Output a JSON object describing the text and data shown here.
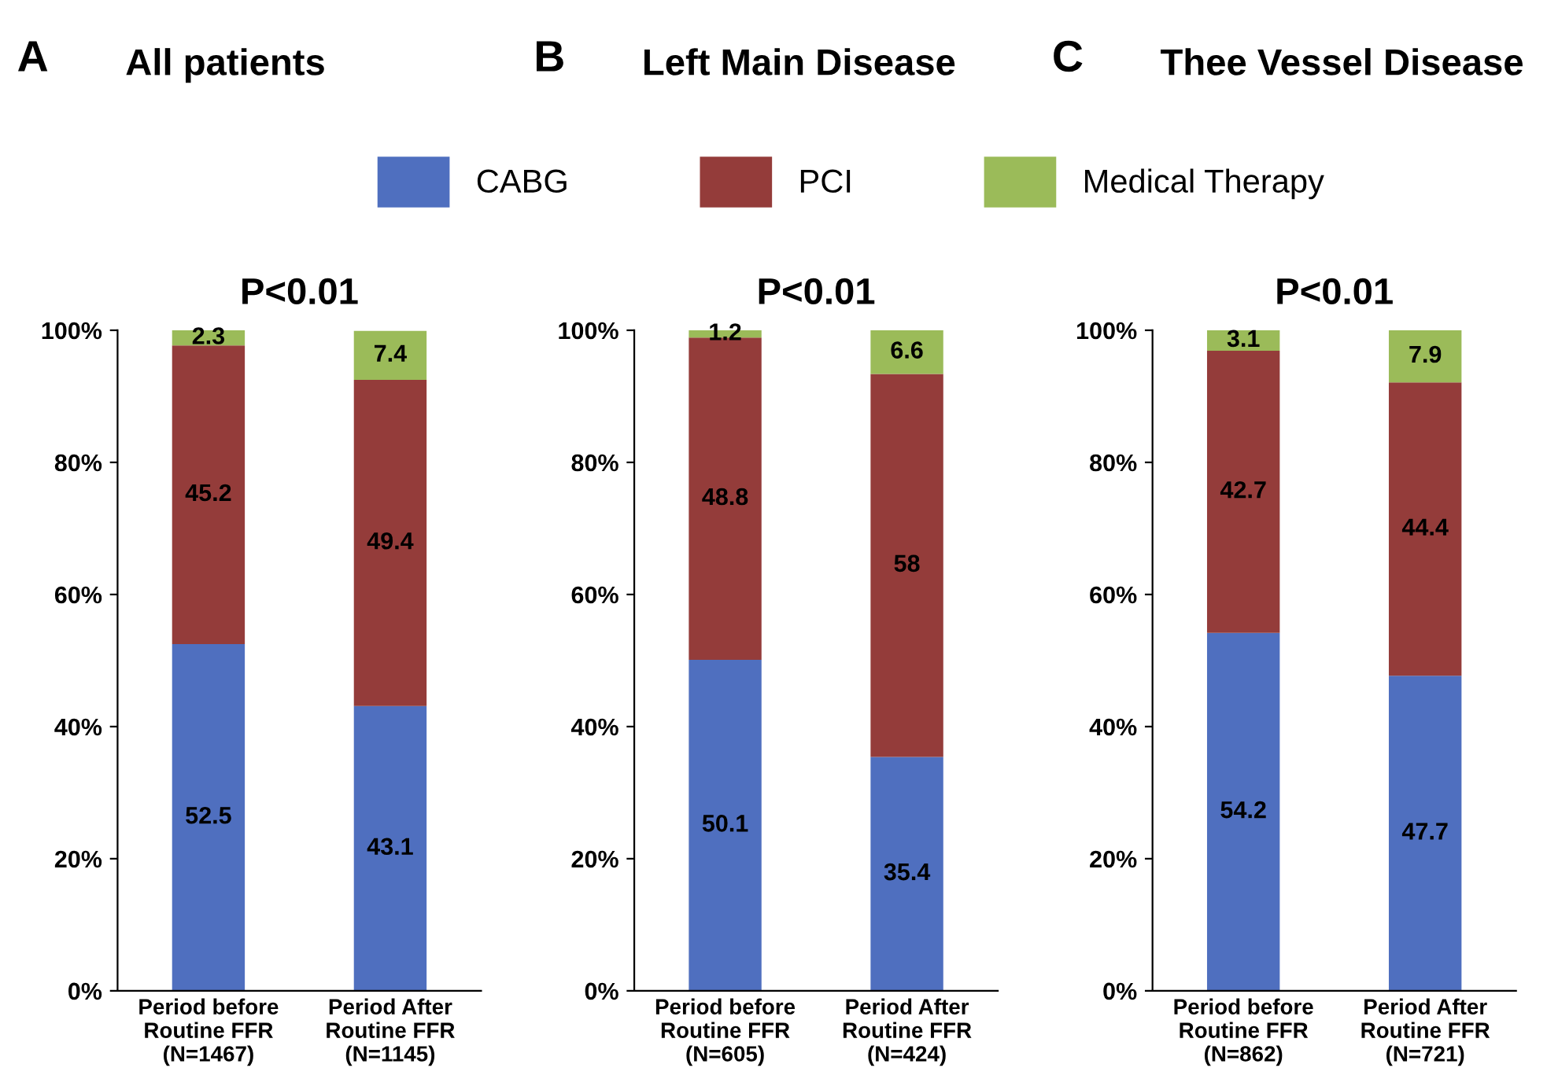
{
  "chart_data": [
    {
      "type": "bar",
      "stacked": true,
      "title": "All patients",
      "subtitle": "P<0.01",
      "annotations": [
        "A"
      ],
      "categories": [
        "Period before\nRoutine FFR\n(N=1467)",
        "Period After\nRoutine FFR\n(N=1145)"
      ],
      "series": [
        {
          "name": "CABG",
          "color": "#4f6fbf",
          "values": [
            52.5,
            43.1
          ]
        },
        {
          "name": "PCI",
          "color": "#943c3a",
          "values": [
            45.2,
            49.4
          ]
        },
        {
          "name": "Medical Therapy",
          "color": "#9bbb59",
          "values": [
            2.3,
            7.4
          ]
        }
      ],
      "ylim": [
        0,
        100
      ],
      "yticks": [
        {
          "value": 0,
          "label": "0%"
        },
        {
          "value": 20,
          "label": "20%"
        },
        {
          "value": 40,
          "label": "40%"
        },
        {
          "value": 60,
          "label": "60%"
        },
        {
          "value": 80,
          "label": "80%"
        },
        {
          "value": 100,
          "label": "100%"
        }
      ],
      "data_labels": true,
      "grid": false,
      "legend": "top"
    },
    {
      "type": "bar",
      "stacked": true,
      "title": "Left Main Disease",
      "subtitle": "P<0.01",
      "annotations": [
        "B"
      ],
      "categories": [
        "Period before\nRoutine FFR\n(N=605)",
        "Period After\nRoutine FFR\n(N=424)"
      ],
      "series": [
        {
          "color": "#4f6fbf",
          "values": [
            50.1,
            35.4
          ]
        },
        {
          "color": "#943c3a",
          "values": [
            48.8,
            58
          ]
        },
        {
          "color": "#9bbb59",
          "values": [
            1.2,
            6.6
          ]
        }
      ],
      "ylim": [
        0,
        100
      ],
      "yticks": [
        {
          "value": 0,
          "label": "0%"
        },
        {
          "value": 20,
          "label": "20%"
        },
        {
          "value": 40,
          "label": "40%"
        },
        {
          "value": 60,
          "label": "60%"
        },
        {
          "value": 80,
          "label": "80%"
        },
        {
          "value": 100,
          "label": "100%"
        }
      ],
      "data_labels": true,
      "grid": false
    },
    {
      "type": "bar",
      "stacked": true,
      "title": "Thee Vessel Disease",
      "subtitle": "P<0.01",
      "annotations": [
        "C"
      ],
      "categories": [
        "Period before\nRoutine FFR\n(N=862)",
        "Period After\nRoutine FFR\n(N=721)"
      ],
      "series": [
        {
          "color": "#4f6fbf",
          "values": [
            54.2,
            47.7
          ]
        },
        {
          "color": "#943c3a",
          "values": [
            42.7,
            44.4
          ]
        },
        {
          "color": "#9bbb59",
          "values": [
            3.1,
            7.9
          ]
        }
      ],
      "ylim": [
        0,
        100
      ],
      "yticks": [
        {
          "value": 0,
          "label": "0%"
        },
        {
          "value": 20,
          "label": "20%"
        },
        {
          "value": 40,
          "label": "40%"
        },
        {
          "value": 60,
          "label": "60%"
        },
        {
          "value": 80,
          "label": "80%"
        },
        {
          "value": 100,
          "label": "100%"
        }
      ],
      "data_labels": true,
      "grid": false
    }
  ]
}
